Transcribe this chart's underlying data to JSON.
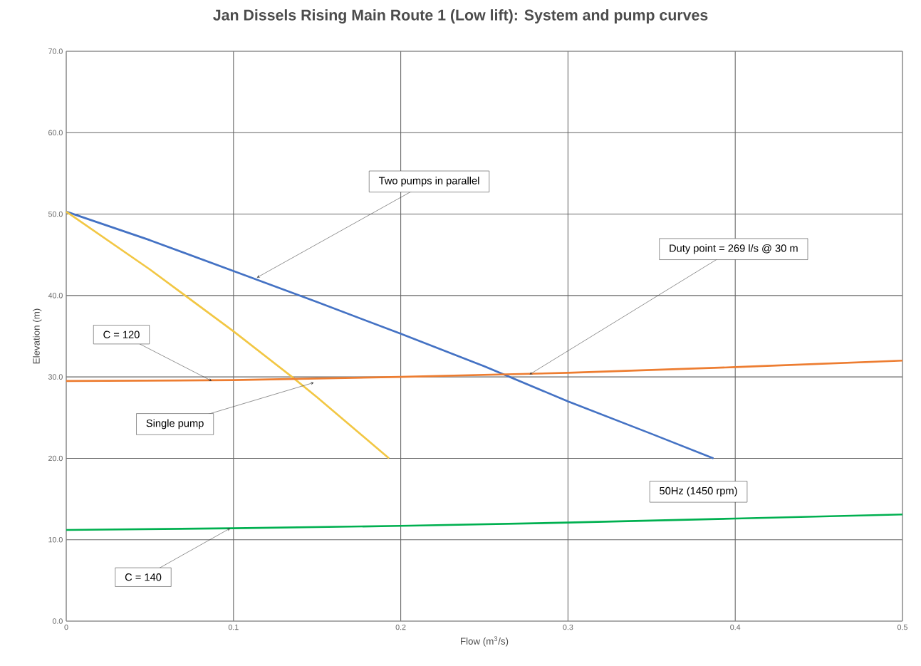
{
  "chart_data": {
    "type": "line",
    "title": "Jan Dissels Rising Main Route 1 (Low lift): System and pump curves",
    "xlabel": "Flow (m$^{3}$/s)",
    "ylabel": "Elevation (m)",
    "xlim": [
      0,
      0.5
    ],
    "ylim": [
      0,
      70
    ],
    "xticks": [
      0,
      0.1,
      0.2,
      0.3,
      0.4,
      0.5
    ],
    "yticks": [
      {
        "value": 0,
        "label": "0.0"
      },
      {
        "value": 10,
        "label": "10.0"
      },
      {
        "value": 20,
        "label": "20.0"
      },
      {
        "value": 30,
        "label": "30.0"
      },
      {
        "value": 40,
        "label": "40.0"
      },
      {
        "value": 50,
        "label": "50.0"
      },
      {
        "value": 60,
        "label": "60.0"
      },
      {
        "value": 70,
        "label": "70.0"
      }
    ],
    "grid": true,
    "marker": "none",
    "line_style": "solid",
    "series": [
      {
        "color": "#4472c4",
        "x": [
          0,
          0.05,
          0.1,
          0.15,
          0.2,
          0.25,
          0.3,
          0.35,
          0.387
        ],
        "values": [
          50.3,
          46.8,
          43.0,
          39.2,
          35.3,
          31.3,
          27.0,
          23.0,
          20.0
        ]
      },
      {
        "color": "#f2c744",
        "x": [
          0,
          0.05,
          0.1,
          0.135,
          0.15,
          0.193
        ],
        "values": [
          50.3,
          43.2,
          35.6,
          30.0,
          27.5,
          20.0
        ]
      },
      {
        "color": "#ed7d31",
        "x": [
          0,
          0.1,
          0.2,
          0.3,
          0.4,
          0.5
        ],
        "values": [
          29.5,
          29.6,
          30.0,
          30.5,
          31.2,
          32.0
        ]
      },
      {
        "color": "#00b050",
        "x": [
          0,
          0.1,
          0.2,
          0.3,
          0.4,
          0.5
        ],
        "values": [
          11.2,
          11.4,
          11.7,
          12.1,
          12.6,
          13.1
        ]
      }
    ],
    "annotations": [
      {
        "text": "Two pumps in parallel",
        "x": 0.114,
        "y": 42.2
      },
      {
        "text": "Duty point = 269 l/s @ 30 m",
        "x": 0.277,
        "y": 30.3
      },
      {
        "text": "C = 120",
        "x": 0.087,
        "y": 29.5
      },
      {
        "text": "Single pump",
        "x": 0.148,
        "y": 29.3
      },
      {
        "text": "C = 140",
        "x": 0.098,
        "y": 11.4
      },
      "50Hz (1450 rpm)"
    ]
  }
}
